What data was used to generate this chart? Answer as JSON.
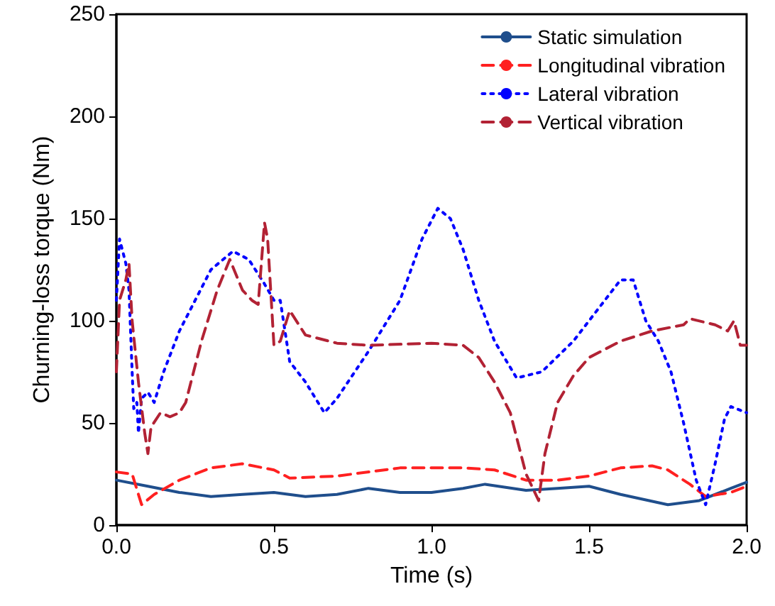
{
  "chart_data": {
    "type": "line",
    "xlabel": "Time (s)",
    "ylabel": "Churning-loss torque (Nm)",
    "xlim": [
      0,
      2
    ],
    "xticks": [
      {
        "value": 0,
        "label": "0.0"
      },
      {
        "value": 0.5,
        "label": "0.5"
      },
      {
        "value": 1,
        "label": "1.0"
      },
      {
        "value": 1.5,
        "label": "1.5"
      },
      {
        "value": 2,
        "label": "2.0"
      }
    ],
    "ylim": [
      0,
      250
    ],
    "yticks": [
      0,
      50,
      100,
      150,
      200,
      250
    ],
    "grid": false,
    "legend": "top right",
    "marker": "none",
    "series": [
      {
        "name": "Static simulation",
        "color": "#1f4e8c",
        "line_style": "solid",
        "x": [
          0,
          0.1,
          0.2,
          0.3,
          0.4,
          0.5,
          0.6,
          0.7,
          0.8,
          0.9,
          1.0,
          1.1,
          1.17,
          1.3,
          1.4,
          1.5,
          1.6,
          1.75,
          1.85,
          1.95,
          2.0
        ],
        "values": [
          22,
          19,
          16,
          14,
          15,
          16,
          14,
          15,
          18,
          16,
          16,
          18,
          20,
          17,
          18,
          19,
          15,
          10,
          12,
          18,
          21
        ]
      },
      {
        "name": "Longitudinal vibration",
        "color": "#ff2020",
        "line_style": "dashed",
        "x": [
          0,
          0.05,
          0.08,
          0.12,
          0.2,
          0.3,
          0.4,
          0.5,
          0.55,
          0.7,
          0.9,
          1.0,
          1.1,
          1.2,
          1.3,
          1.4,
          1.5,
          1.6,
          1.7,
          1.75,
          1.82,
          1.87,
          1.95,
          2.0
        ],
        "values": [
          26,
          25,
          10,
          15,
          22,
          28,
          30,
          27,
          23,
          24,
          28,
          28,
          28,
          27,
          22,
          22,
          24,
          28,
          29,
          27,
          20,
          14,
          16,
          19
        ]
      },
      {
        "name": "Lateral vibration",
        "color": "#0000ff",
        "line_style": "dotted",
        "x": [
          0,
          0.01,
          0.03,
          0.04,
          0.05,
          0.055,
          0.065,
          0.07,
          0.08,
          0.1,
          0.12,
          0.15,
          0.2,
          0.25,
          0.3,
          0.37,
          0.42,
          0.47,
          0.5,
          0.52,
          0.55,
          0.6,
          0.66,
          0.7,
          0.8,
          0.9,
          0.97,
          1.02,
          1.06,
          1.1,
          1.15,
          1.2,
          1.27,
          1.35,
          1.45,
          1.55,
          1.6,
          1.64,
          1.68,
          1.72,
          1.76,
          1.8,
          1.84,
          1.87,
          1.9,
          1.93,
          1.95,
          2.0
        ],
        "values": [
          110,
          140,
          128,
          115,
          75,
          57,
          60,
          45,
          62,
          65,
          60,
          75,
          95,
          110,
          125,
          134,
          130,
          118,
          110,
          110,
          80,
          70,
          55,
          62,
          85,
          110,
          140,
          155,
          150,
          135,
          110,
          90,
          72,
          75,
          90,
          110,
          120,
          120,
          100,
          90,
          75,
          50,
          22,
          10,
          30,
          52,
          58,
          55
        ]
      },
      {
        "name": "Vertical vibration",
        "color": "#b22234",
        "line_style": "dashed",
        "x": [
          0,
          0.01,
          0.03,
          0.04,
          0.05,
          0.07,
          0.09,
          0.1,
          0.11,
          0.14,
          0.17,
          0.2,
          0.22,
          0.27,
          0.32,
          0.36,
          0.4,
          0.43,
          0.45,
          0.47,
          0.48,
          0.5,
          0.52,
          0.55,
          0.6,
          0.7,
          0.8,
          1.0,
          1.1,
          1.15,
          1.2,
          1.25,
          1.3,
          1.34,
          1.36,
          1.4,
          1.45,
          1.5,
          1.6,
          1.7,
          1.8,
          1.82,
          1.9,
          1.94,
          1.96,
          1.98,
          2.0
        ],
        "values": [
          75,
          110,
          120,
          128,
          100,
          70,
          45,
          35,
          48,
          55,
          53,
          55,
          60,
          90,
          115,
          130,
          115,
          110,
          108,
          148,
          140,
          88,
          90,
          105,
          93,
          89,
          88,
          89,
          88,
          82,
          70,
          55,
          25,
          12,
          35,
          60,
          73,
          82,
          90,
          95,
          98,
          101,
          98,
          95,
          100,
          88,
          88
        ]
      }
    ]
  }
}
